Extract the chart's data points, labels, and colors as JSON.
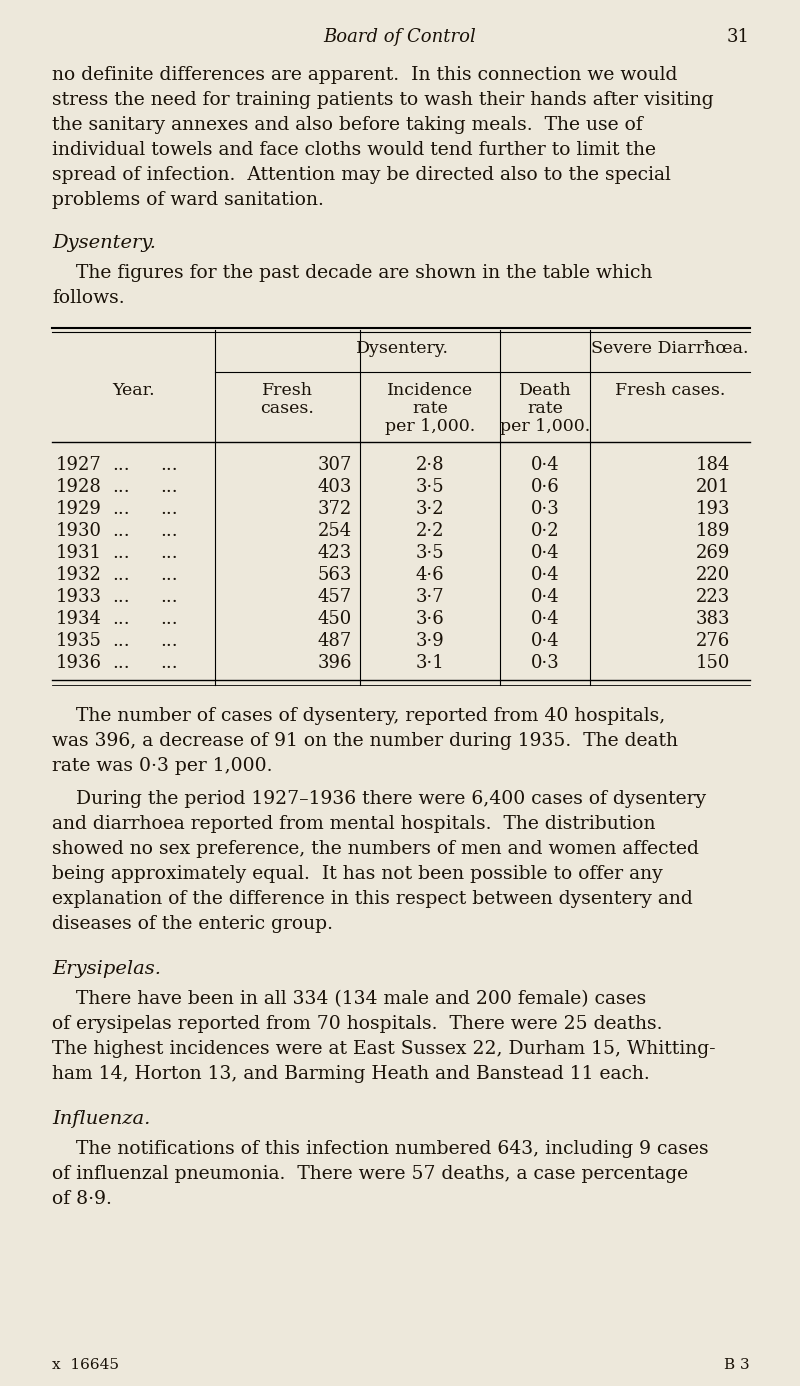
{
  "bg_color": "#ede8db",
  "text_color": "#1a1208",
  "page_header": "Board of Control",
  "page_number": "31",
  "para1_lines": [
    "no definite differences are apparent.  In this connection we would",
    "stress the need for training patients to wash their hands after visiting",
    "the sanitary annexes and also before taking meals.  The use of",
    "individual towels and face cloths would tend further to limit the",
    "spread of infection.  Attention may be directed also to the special",
    "problems of ward sanitation."
  ],
  "section1": "Dysentery.",
  "para2_lines": [
    "    The figures for the past decade are shown in the table which",
    "follows."
  ],
  "table_data": [
    [
      "1927",
      "...",
      "...",
      "307",
      "2·8",
      "0·4",
      "184"
    ],
    [
      "1928",
      "...",
      "...",
      "403",
      "3·5",
      "0·6",
      "201"
    ],
    [
      "1929",
      "...",
      "...",
      "372",
      "3·2",
      "0·3",
      "193"
    ],
    [
      "1930",
      "...",
      "...",
      "254",
      "2·2",
      "0·2",
      "189"
    ],
    [
      "1931",
      "...",
      "...",
      "423",
      "3·5",
      "0·4",
      "269"
    ],
    [
      "1932",
      "...",
      "...",
      "563",
      "4·6",
      "0·4",
      "220"
    ],
    [
      "1933",
      "...",
      "...",
      "457",
      "3·7",
      "0·4",
      "223"
    ],
    [
      "1934",
      "...",
      "...",
      "450",
      "3·6",
      "0·4",
      "383"
    ],
    [
      "1935",
      "...",
      "...",
      "487",
      "3·9",
      "0·4",
      "276"
    ],
    [
      "1936",
      "...",
      "...",
      "396",
      "3·1",
      "0·3",
      "150"
    ]
  ],
  "para3_lines": [
    "    The number of cases of dysentery, reported from 40 hospitals,",
    "was 396, a decrease of 91 on the number during 1935.  The death",
    "rate was 0·3 per 1,000."
  ],
  "para4_lines": [
    "    During the period 1927–1936 there were 6,400 cases of dysentery",
    "and diarrhoea reported from mental hospitals.  The distribution",
    "showed no sex preference, the numbers of men and women affected",
    "being approximately equal.  It has not been possible to offer any",
    "explanation of the difference in this respect between dysentery and",
    "diseases of the enteric group."
  ],
  "section2": "Erysipelas.",
  "para5_lines": [
    "    There have been in all 334 (134 male and 200 female) cases",
    "of erysipelas reported from 70 hospitals.  There were 25 deaths.",
    "The highest incidences were at East Sussex 22, Durham 15, Whitting-",
    "ham 14, Horton 13, and Barming Heath and Banstead 11 each."
  ],
  "section3": "Influenza.",
  "para6_lines": [
    "    The notifications of this infection numbered 643, including 9 cases",
    "of influenzal pneumonia.  There were 57 deaths, a case percentage",
    "of 8·9."
  ],
  "footer_left": "x  16645",
  "footer_right": "B 3"
}
